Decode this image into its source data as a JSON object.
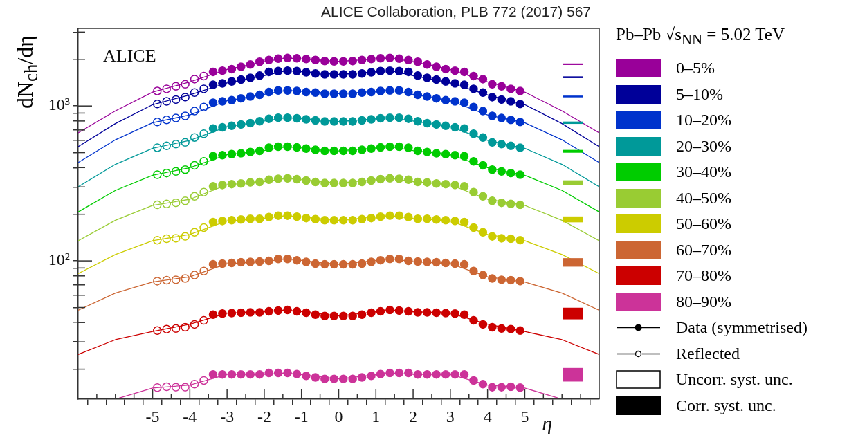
{
  "chart_data": {
    "type": "scatter",
    "title": "ALICE Collaboration, PLB 772 (2017) 567",
    "xlabel": "η",
    "ylabel": "dN$_{ch}$/dη",
    "legend_title": "Pb–Pb √s$_{NN}$ = 5.02 TeV",
    "annotations": [
      "ALICE",
      "Data (symmetrised)",
      "Reflected",
      "Uncorr. syst. unc.",
      "Corr. syst. unc."
    ],
    "log": "y",
    "legend": "right",
    "marker": "circle",
    "xlim": [
      -7,
      7
    ],
    "ylim": [
      12.8,
      3170
    ],
    "xticks": [
      {
        "value": -6.5,
        "label": null
      },
      {
        "value": -6,
        "label": null
      },
      {
        "value": -5.5,
        "label": null
      },
      -5,
      {
        "value": -4.5,
        "label": null
      },
      -4,
      {
        "value": -3.5,
        "label": null
      },
      -3,
      {
        "value": -2.5,
        "label": null
      },
      -2,
      {
        "value": -1.5,
        "label": null
      },
      -1,
      {
        "value": -0.5,
        "label": null
      },
      0,
      {
        "value": 0.5,
        "label": null
      },
      1,
      {
        "value": 1.5,
        "label": null
      },
      2,
      {
        "value": 2.5,
        "label": null
      },
      3,
      {
        "value": 3.5,
        "label": null
      },
      4,
      {
        "value": 4.5,
        "label": null
      },
      5,
      {
        "value": 5.5,
        "label": null
      },
      {
        "value": 6,
        "label": null
      },
      {
        "value": 6.5,
        "label": null
      }
    ],
    "yticks": [
      {
        "value": 20,
        "label": null
      },
      {
        "value": 30,
        "label": null
      },
      {
        "value": 40,
        "label": null
      },
      {
        "value": 50,
        "label": null
      },
      {
        "value": 60,
        "label": null
      },
      {
        "value": 70,
        "label": null
      },
      {
        "value": 80,
        "label": null
      },
      {
        "value": 90,
        "label": null
      },
      {
        "value": 100,
        "label": "10²"
      },
      {
        "value": 200,
        "label": null
      },
      {
        "value": 300,
        "label": null
      },
      {
        "value": 400,
        "label": null
      },
      {
        "value": 500,
        "label": null
      },
      {
        "value": 600,
        "label": null
      },
      {
        "value": 700,
        "label": null
      },
      {
        "value": 800,
        "label": null
      },
      {
        "value": 900,
        "label": null
      },
      {
        "value": 1000,
        "label": "10³"
      },
      {
        "value": 2000,
        "label": null
      },
      {
        "value": 3000,
        "label": null
      }
    ],
    "x": [
      -3.375,
      -3.125,
      -2.875,
      -2.625,
      -2.375,
      -2.125,
      -1.875,
      -1.625,
      -1.375,
      -1.125,
      -0.875,
      -0.625,
      -0.375,
      -0.125,
      0.125,
      0.375,
      0.625,
      0.875,
      1.125,
      1.375,
      1.625,
      1.875,
      2.125,
      2.375,
      2.625,
      2.875,
      3.125,
      3.375,
      3.625,
      3.875,
      4.125,
      4.375,
      4.625,
      4.875
    ],
    "series": [
      {
        "name": "0–5%",
        "color": "#990099",
        "values": [
          1660,
          1690,
          1730,
          1790,
          1850,
          1930,
          1980,
          2020,
          2040,
          2030,
          2010,
          1980,
          1950,
          1940,
          1940,
          1950,
          1980,
          2010,
          2030,
          2040,
          2020,
          1980,
          1930,
          1850,
          1790,
          1730,
          1690,
          1660,
          1560,
          1490,
          1380,
          1340,
          1290,
          1250
        ]
      },
      {
        "name": "5–10%",
        "color": "#000099",
        "values": [
          1370,
          1400,
          1440,
          1480,
          1520,
          1570,
          1660,
          1680,
          1690,
          1680,
          1650,
          1620,
          1600,
          1600,
          1600,
          1600,
          1620,
          1650,
          1680,
          1690,
          1680,
          1660,
          1570,
          1520,
          1480,
          1440,
          1400,
          1370,
          1290,
          1220,
          1140,
          1100,
          1070,
          1030
        ]
      },
      {
        "name": "10–20%",
        "color": "#0033cc",
        "values": [
          1050,
          1070,
          1090,
          1120,
          1150,
          1180,
          1230,
          1260,
          1260,
          1250,
          1230,
          1220,
          1200,
          1200,
          1200,
          1200,
          1220,
          1230,
          1250,
          1260,
          1260,
          1230,
          1180,
          1150,
          1120,
          1090,
          1070,
          1050,
          984,
          927,
          863,
          836,
          813,
          788
        ]
      },
      {
        "name": "20–30%",
        "color": "#009999",
        "values": [
          716,
          728,
          745,
          760,
          775,
          797,
          827,
          840,
          840,
          833,
          820,
          807,
          794,
          794,
          794,
          794,
          807,
          820,
          833,
          840,
          840,
          827,
          797,
          775,
          760,
          745,
          728,
          716,
          662,
          626,
          582,
          567,
          553,
          538
        ]
      },
      {
        "name": "30–40%",
        "color": "#00cc00",
        "values": [
          474,
          481,
          489,
          495,
          505,
          513,
          538,
          546,
          546,
          540,
          531,
          521,
          513,
          513,
          513,
          513,
          521,
          531,
          540,
          546,
          546,
          538,
          513,
          505,
          495,
          489,
          481,
          474,
          439,
          414,
          388,
          378,
          369,
          360
        ]
      },
      {
        "name": "40–50%",
        "color": "#99cc33",
        "values": [
          303,
          309,
          313,
          316,
          321,
          323,
          334,
          339,
          341,
          337,
          330,
          323,
          318,
          318,
          318,
          318,
          323,
          330,
          337,
          341,
          339,
          334,
          323,
          321,
          316,
          313,
          309,
          303,
          278,
          261,
          244,
          237,
          233,
          230
        ]
      },
      {
        "name": "50–60%",
        "color": "#cccc00",
        "values": [
          178,
          181,
          183,
          185,
          187,
          187,
          192,
          196,
          196,
          193,
          189,
          186,
          183,
          183,
          183,
          183,
          186,
          189,
          193,
          196,
          196,
          192,
          187,
          187,
          185,
          183,
          181,
          178,
          164,
          153,
          144,
          140,
          139,
          136
        ]
      },
      {
        "name": "60–70%",
        "color": "#cc6633",
        "values": [
          95,
          96,
          97,
          98,
          98.5,
          99,
          100,
          103,
          103,
          101,
          98.5,
          96,
          95,
          95,
          95,
          95,
          96,
          98.5,
          101,
          103,
          103,
          100,
          99,
          98.5,
          98,
          97,
          96,
          95,
          86,
          81,
          77,
          75.5,
          75,
          74
        ]
      },
      {
        "name": "70–80%",
        "color": "#cc0000",
        "values": [
          45,
          45.7,
          46,
          46.3,
          46.5,
          46.5,
          47.2,
          47.8,
          48.2,
          47.2,
          46.3,
          45,
          44.1,
          44.1,
          44.1,
          44.1,
          45,
          46.3,
          47.2,
          48.2,
          47.8,
          47.2,
          46.5,
          46.5,
          46.3,
          46,
          45.7,
          45,
          41.3,
          38.9,
          37.3,
          36.6,
          36.3,
          35.5
        ]
      },
      {
        "name": "80–90%",
        "color": "#cc3399",
        "values": [
          18.5,
          18.5,
          18.5,
          18.5,
          18.5,
          18.5,
          18.9,
          18.9,
          18.9,
          18.6,
          18.1,
          17.7,
          17.3,
          17.3,
          17.3,
          17.3,
          17.7,
          18.1,
          18.6,
          18.9,
          18.9,
          18.9,
          18.5,
          18.5,
          18.5,
          18.5,
          18.5,
          18.5,
          16.9,
          16,
          15.3,
          15.3,
          15.4,
          15.2
        ]
      },
      {
        "color": "#990099",
        "x": [
          -4.875,
          -4.625,
          -4.375,
          -4.125,
          -3.875,
          -3.625
        ],
        "values": [
          1250,
          1290,
          1340,
          1380,
          1490,
          1560
        ]
      },
      {
        "color": "#000099",
        "x": [
          -4.875,
          -4.625,
          -4.375,
          -4.125,
          -3.875,
          -3.625
        ],
        "values": [
          1030,
          1070,
          1100,
          1140,
          1220,
          1290
        ]
      },
      {
        "color": "#0033cc",
        "x": [
          -4.875,
          -4.625,
          -4.375,
          -4.125,
          -3.875,
          -3.625
        ],
        "values": [
          788,
          813,
          836,
          863,
          927,
          984
        ]
      },
      {
        "color": "#009999",
        "x": [
          -4.875,
          -4.625,
          -4.375,
          -4.125,
          -3.875,
          -3.625
        ],
        "values": [
          538,
          553,
          567,
          582,
          626,
          662
        ]
      },
      {
        "color": "#00cc00",
        "x": [
          -4.875,
          -4.625,
          -4.375,
          -4.125,
          -3.875,
          -3.625
        ],
        "values": [
          360,
          369,
          378,
          388,
          414,
          439
        ]
      },
      {
        "color": "#99cc33",
        "x": [
          -4.875,
          -4.625,
          -4.375,
          -4.125,
          -3.875,
          -3.625
        ],
        "values": [
          230,
          233,
          237,
          244,
          261,
          278
        ]
      },
      {
        "color": "#cccc00",
        "x": [
          -4.875,
          -4.625,
          -4.375,
          -4.125,
          -3.875,
          -3.625
        ],
        "values": [
          136,
          139,
          140,
          144,
          153,
          164
        ]
      },
      {
        "color": "#cc6633",
        "x": [
          -4.875,
          -4.625,
          -4.375,
          -4.125,
          -3.875,
          -3.625
        ],
        "values": [
          74,
          75,
          75.5,
          77,
          81,
          86
        ]
      },
      {
        "color": "#cc0000",
        "x": [
          -4.875,
          -4.625,
          -4.375,
          -4.125,
          -3.875,
          -3.625
        ],
        "values": [
          35.5,
          36.3,
          36.6,
          37.3,
          38.9,
          41.3
        ]
      },
      {
        "color": "#cc3399",
        "x": [
          -4.875,
          -4.625,
          -4.375,
          -4.125,
          -3.875,
          -3.625
        ],
        "values": [
          15.2,
          15.4,
          15.3,
          15.3,
          16,
          16.9
        ]
      },
      {
        "type": "line",
        "marker": "none",
        "color": "#990099",
        "x": [
          -7,
          -6,
          -5,
          -4,
          -3,
          -2,
          -1.4,
          0,
          1.4,
          2,
          3,
          4,
          5,
          6,
          7
        ],
        "values": [
          671,
          930,
          1230,
          1430,
          1720,
          1930,
          2040,
          1940,
          2040,
          1930,
          1720,
          1430,
          1230,
          930,
          671
        ]
      },
      {
        "type": "line",
        "marker": "none",
        "color": "#000099",
        "x": [
          -7,
          -6,
          -5,
          -4,
          -3,
          -2,
          -1.4,
          0,
          1.4,
          2,
          3,
          4,
          5,
          6,
          7
        ],
        "values": [
          546,
          770,
          1020,
          1180,
          1410,
          1570,
          1690,
          1600,
          1690,
          1570,
          1410,
          1180,
          1020,
          770,
          546
        ]
      },
      {
        "type": "line",
        "marker": "none",
        "color": "#0033cc",
        "x": [
          -7,
          -6,
          -5,
          -4,
          -3,
          -2,
          -1.4,
          0,
          1.4,
          2,
          3,
          4,
          5,
          6,
          7
        ],
        "values": [
          431,
          605,
          780,
          875,
          1080,
          1190,
          1260,
          1200,
          1260,
          1190,
          1080,
          875,
          780,
          605,
          431
        ]
      },
      {
        "type": "line",
        "marker": "none",
        "color": "#009999",
        "x": [
          -7,
          -6,
          -5,
          -4,
          -3,
          -2,
          -1.4,
          0,
          1.4,
          2,
          3,
          4,
          5,
          6,
          7
        ],
        "values": [
          301,
          420,
          533,
          600,
          735,
          800,
          840,
          794,
          840,
          800,
          735,
          600,
          533,
          420,
          301
        ]
      },
      {
        "type": "line",
        "marker": "none",
        "color": "#00cc00",
        "x": [
          -7,
          -6,
          -5,
          -4,
          -3,
          -2,
          -1.4,
          0,
          1.4,
          2,
          3,
          4,
          5,
          6,
          7
        ],
        "values": [
          207,
          285,
          357,
          400,
          485,
          515,
          546,
          513,
          546,
          515,
          485,
          400,
          357,
          285,
          207
        ]
      },
      {
        "type": "line",
        "marker": "none",
        "color": "#99cc33",
        "x": [
          -7,
          -6,
          -5,
          -4,
          -3,
          -2,
          -1.4,
          0,
          1.4,
          2,
          3,
          4,
          5,
          6,
          7
        ],
        "values": [
          135,
          183,
          228,
          250,
          310,
          325,
          341,
          318,
          341,
          325,
          310,
          250,
          228,
          183,
          135
        ]
      },
      {
        "type": "line",
        "marker": "none",
        "color": "#cccc00",
        "x": [
          -7,
          -6,
          -5,
          -4,
          -3,
          -2,
          -1.4,
          0,
          1.4,
          2,
          3,
          4,
          5,
          6,
          7
        ],
        "values": [
          82.8,
          110,
          135,
          148,
          181,
          188,
          196,
          183,
          196,
          188,
          181,
          148,
          135,
          110,
          82.8
        ]
      },
      {
        "type": "line",
        "marker": "none",
        "color": "#cc6633",
        "x": [
          -7,
          -6,
          -5,
          -4,
          -3,
          -2,
          -1.4,
          0,
          1.4,
          2,
          3,
          4,
          5,
          6,
          7
        ],
        "values": [
          48,
          62,
          73,
          79,
          96,
          99,
          103,
          95,
          103,
          99,
          96,
          79,
          73,
          62,
          48
        ]
      },
      {
        "type": "line",
        "marker": "none",
        "color": "#cc0000",
        "x": [
          -7,
          -6,
          -5,
          -4,
          -3,
          -2,
          -1.4,
          0,
          1.4,
          2,
          3,
          4,
          5,
          6,
          7
        ],
        "values": [
          24.9,
          31,
          35,
          39,
          46,
          47,
          48.2,
          44.1,
          48.2,
          47,
          46,
          39,
          35,
          31,
          24.9
        ]
      },
      {
        "type": "line",
        "marker": "none",
        "color": "#cc3399",
        "x": [
          -5.9,
          -5,
          -4,
          -3,
          -2,
          -1.4,
          0,
          1.4,
          2,
          3,
          4,
          5,
          5.9
        ],
        "values": [
          13,
          15.1,
          15.8,
          18.5,
          18.5,
          18.9,
          17.3,
          18.9,
          18.5,
          18.5,
          15.8,
          15.1,
          13
        ]
      },
      {
        "type": "bar",
        "color": "#990099",
        "x": [
          6.3
        ],
        "base": [
          1845
        ],
        "values": [
          29
        ]
      },
      {
        "type": "bar",
        "color": "#000099",
        "x": [
          6.3
        ],
        "base": [
          1518
        ],
        "values": [
          30
        ]
      },
      {
        "type": "bar",
        "color": "#0033cc",
        "x": [
          6.3
        ],
        "base": [
          1141
        ],
        "values": [
          22
        ]
      },
      {
        "type": "bar",
        "color": "#009999",
        "x": [
          6.3
        ],
        "base": [
          769
        ],
        "values": [
          22
        ]
      },
      {
        "type": "bar",
        "color": "#00cc00",
        "x": [
          6.3
        ],
        "base": [
          501
        ],
        "values": [
          18
        ]
      },
      {
        "type": "bar",
        "color": "#99cc33",
        "x": [
          6.3
        ],
        "base": [
          311
        ],
        "values": [
          19
        ]
      },
      {
        "type": "bar",
        "color": "#cccc00",
        "x": [
          6.3
        ],
        "base": [
          178
        ],
        "values": [
          15
        ]
      },
      {
        "type": "bar",
        "color": "#cc6633",
        "x": [
          6.3
        ],
        "base": [
          92.1
        ],
        "values": [
          11.7
        ]
      },
      {
        "type": "bar",
        "color": "#cc0000",
        "x": [
          6.3
        ],
        "base": [
          42.1
        ],
        "values": [
          7.6
        ]
      },
      {
        "type": "bar",
        "color": "#cc3399",
        "x": [
          6.3
        ],
        "base": [
          16.7
        ],
        "values": [
          3.6
        ]
      }
    ]
  }
}
